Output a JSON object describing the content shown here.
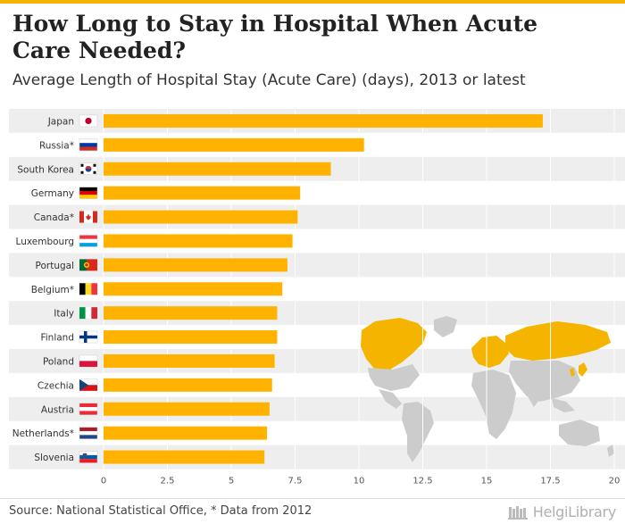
{
  "header": {
    "title": "How Long to Stay in Hospital When Acute Care Needed?",
    "subtitle": "Average Length of Hospital Stay (Acute Care) (days), 2013 or latest"
  },
  "footer": {
    "source": "Source: National Statistical Office, * Data from 2012",
    "brand_name": "HelgiLibrary"
  },
  "colors": {
    "bar": "#FFB300",
    "accent": "#F5B400",
    "row_band": "#eeeeee",
    "map_highlight": "#F5B400",
    "map_other": "#cccccc"
  },
  "chart_data": {
    "type": "bar",
    "orientation": "horizontal",
    "title": "How Long to Stay in Hospital When Acute Care Needed?",
    "subtitle": "Average Length of Hospital Stay (Acute Care) (days), 2013 or latest",
    "categories": [
      "Japan",
      "Russia*",
      "South Korea",
      "Germany",
      "Canada*",
      "Luxembourg",
      "Portugal",
      "Belgium*",
      "Italy",
      "Finland",
      "Poland",
      "Czechia",
      "Austria",
      "Netherlands*",
      "Slovenia"
    ],
    "flags": [
      "japan-flag-icon",
      "russia-flag-icon",
      "south-korea-flag-icon",
      "germany-flag-icon",
      "canada-flag-icon",
      "luxembourg-flag-icon",
      "portugal-flag-icon",
      "belgium-flag-icon",
      "italy-flag-icon",
      "finland-flag-icon",
      "poland-flag-icon",
      "czechia-flag-icon",
      "austria-flag-icon",
      "netherlands-flag-icon",
      "slovenia-flag-icon"
    ],
    "values": [
      17.2,
      10.2,
      8.9,
      7.7,
      7.6,
      7.4,
      7.2,
      7.0,
      6.8,
      6.8,
      6.7,
      6.6,
      6.5,
      6.4,
      6.3
    ],
    "xlim": [
      0,
      20
    ],
    "xticks": [
      0,
      2.5,
      5,
      7.5,
      10,
      12.5,
      15,
      17.5,
      20
    ],
    "xtick_labels": [
      "0",
      "2.5",
      "5",
      "7.5",
      "10",
      "12.5",
      "15",
      "17.5",
      "20"
    ],
    "grid": true,
    "xlabel": "",
    "ylabel": ""
  }
}
